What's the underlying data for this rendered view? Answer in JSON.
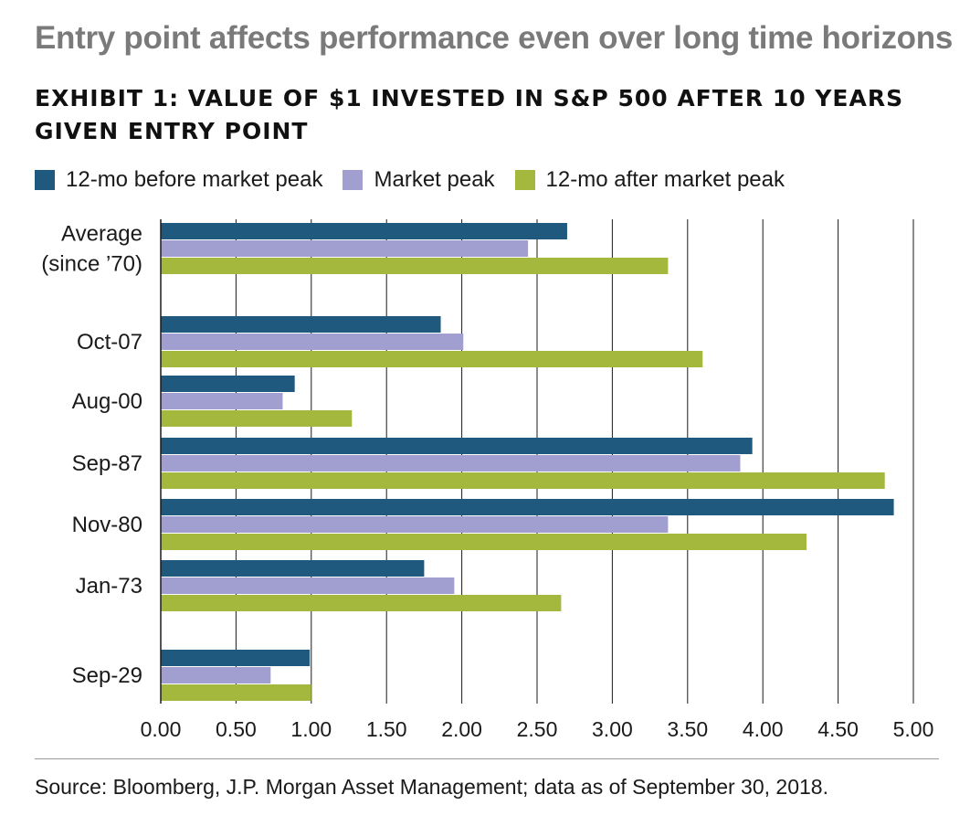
{
  "header": {
    "headline": "Entry point affects performance even over long time horizons",
    "subtitle": "EXHIBIT 1: VALUE OF $1 INVESTED IN S&P 500 AFTER 10 YEARS GIVEN ENTRY POINT"
  },
  "footer": {
    "source": "Source: Bloomberg, J.P. Morgan Asset Management; data as of September 30, 2018."
  },
  "colors": {
    "series_1": "#1f5a7e",
    "series_2": "#a09fcf",
    "series_3": "#a4b83e",
    "grid": "#1a1a1a"
  },
  "chart_data": {
    "type": "bar",
    "orientation": "horizontal",
    "title": "EXHIBIT 1: VALUE OF $1 INVESTED IN S&P 500 AFTER 10 YEARS GIVEN ENTRY POINT",
    "categories": [
      [
        "Average",
        "(since ’70)"
      ],
      [
        "Oct-07"
      ],
      [
        "Aug-00"
      ],
      [
        "Sep-87"
      ],
      [
        "Nov-80"
      ],
      [
        "Jan-73"
      ],
      [
        "Sep-29"
      ]
    ],
    "series": [
      {
        "name": "12-mo before market peak",
        "values": [
          2.7,
          1.86,
          0.89,
          3.93,
          4.87,
          1.75,
          0.99
        ]
      },
      {
        "name": "Market peak",
        "values": [
          2.44,
          2.01,
          0.81,
          3.85,
          3.37,
          1.95,
          0.73
        ]
      },
      {
        "name": "12-mo after market peak",
        "values": [
          3.37,
          3.6,
          1.27,
          4.81,
          4.29,
          2.66,
          1.0
        ]
      }
    ],
    "xlim": [
      0,
      5
    ],
    "xticks": [
      "0.00",
      "0.50",
      "1.00",
      "1.50",
      "2.00",
      "2.50",
      "3.00",
      "3.50",
      "4.00",
      "4.50",
      "5.00"
    ],
    "xlabel": "",
    "ylabel": "",
    "grid": "vertical",
    "legend_position": "top-left"
  }
}
